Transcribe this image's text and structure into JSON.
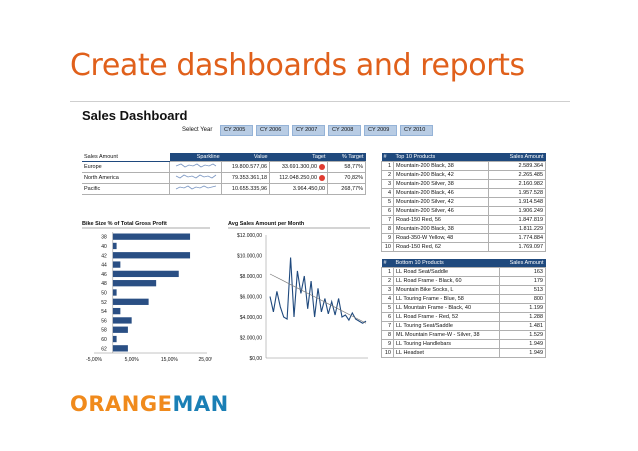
{
  "slide": {
    "title": "Create dashboards and reports"
  },
  "dashboard": {
    "title": "Sales Dashboard",
    "select_year_label": "Select Year",
    "years": [
      "CY 2005",
      "CY 2006",
      "CY 2007",
      "CY 2008",
      "CY 2009",
      "CY 2010"
    ]
  },
  "sales_table": {
    "headers": [
      "Sales Amount",
      "Sparkline",
      "Value",
      "Taget",
      "% Target"
    ],
    "rows": [
      {
        "region": "Europe",
        "value": "19.800.577,06",
        "target": "33.691.300,00",
        "status": "red",
        "pct": "58,77%"
      },
      {
        "region": "North America",
        "value": "79.353.361,18",
        "target": "112.048.250,00",
        "status": "red",
        "pct": "70,82%"
      },
      {
        "region": "Pacific",
        "value": "10.655.335,96",
        "target": "3.964.450,00",
        "status": "",
        "pct": "268,77%"
      }
    ]
  },
  "top10": {
    "hash": "#",
    "title": "Top 10 Products",
    "value_header": "Sales Amount",
    "rows": [
      {
        "n": "1",
        "name": "Mountain-200 Black, 38",
        "value": "2.589.364"
      },
      {
        "n": "2",
        "name": "Mountain-200 Black, 42",
        "value": "2.265.485"
      },
      {
        "n": "3",
        "name": "Mountain-200 Silver, 38",
        "value": "2.160.982"
      },
      {
        "n": "4",
        "name": "Mountain-200 Black, 46",
        "value": "1.957.528"
      },
      {
        "n": "5",
        "name": "Mountain-200 Silver, 42",
        "value": "1.914.548"
      },
      {
        "n": "6",
        "name": "Mountain-200 Silver, 46",
        "value": "1.906.249"
      },
      {
        "n": "7",
        "name": "Road-150 Red, 56",
        "value": "1.847.819"
      },
      {
        "n": "8",
        "name": "Mountain-200 Black, 38",
        "value": "1.811.229"
      },
      {
        "n": "9",
        "name": "Road-350-W Yellow, 48",
        "value": "1.774.884"
      },
      {
        "n": "10",
        "name": "Road-150 Red, 62",
        "value": "1.769.097"
      }
    ]
  },
  "bottom10": {
    "hash": "#",
    "title": "Bottom 10 Products",
    "value_header": "Sales Amount",
    "rows": [
      {
        "n": "1",
        "name": "LL Road Seat/Saddle",
        "value": "163"
      },
      {
        "n": "2",
        "name": "LL Road Frame - Black, 60",
        "value": "179"
      },
      {
        "n": "3",
        "name": "Mountain Bike Socks, L",
        "value": "513"
      },
      {
        "n": "4",
        "name": "LL Touring Frame - Blue, 58",
        "value": "800"
      },
      {
        "n": "5",
        "name": "LL Mountain Frame - Black, 40",
        "value": "1.199"
      },
      {
        "n": "6",
        "name": "LL Road Frame - Red, 52",
        "value": "1.288"
      },
      {
        "n": "7",
        "name": "LL Touring Seat/Saddle",
        "value": "1.481"
      },
      {
        "n": "8",
        "name": "ML Mountain Frame-W - Silver, 38",
        "value": "1.529"
      },
      {
        "n": "9",
        "name": "LL Touring Handlebars",
        "value": "1.949"
      },
      {
        "n": "10",
        "name": "LL Headset",
        "value": "1.949"
      }
    ]
  },
  "chart_data": [
    {
      "type": "bar",
      "title": "Bike Size   % of Total Gross Profit",
      "orientation": "horizontal",
      "categories": [
        "38",
        "40",
        "42",
        "44",
        "46",
        "48",
        "50",
        "52",
        "54",
        "56",
        "58",
        "60",
        "62"
      ],
      "values": [
        20.5,
        1.0,
        20.5,
        2.0,
        17.5,
        11.5,
        1.0,
        9.5,
        2.0,
        5.0,
        4.0,
        1.0,
        4.0
      ],
      "xlim": [
        -5,
        25
      ],
      "xticks": [
        "-5,00%",
        "5,00%",
        "15,00%",
        "25,00%"
      ],
      "bar_color": "#2a4f84"
    },
    {
      "type": "line",
      "title": "Avg Sales Amount per Month",
      "ylim": [
        0,
        12000
      ],
      "yticks": [
        "$12.000,00",
        "$10.000,00",
        "$8.000,00",
        "$6.000,00",
        "$4.000,00",
        "$2.000,00",
        "$0,00"
      ],
      "series": [
        {
          "values": [
            6000,
            4500,
            6500,
            5000,
            4000,
            3800,
            9800,
            4000,
            8500,
            6300,
            8000,
            4800,
            7500,
            4000,
            6800,
            4500,
            5800,
            4300,
            5500,
            4200,
            5800,
            4000,
            4200,
            3700,
            4400,
            3800,
            3600,
            3400,
            3600
          ],
          "color": "#1f497d"
        },
        {
          "values": [
            8200,
            7600,
            7000,
            6400,
            5800,
            5200,
            4600,
            4000,
            3400
          ],
          "color": "#7a7a7a",
          "kind": "trend"
        }
      ],
      "line_color": "#1f497d"
    }
  ],
  "logo": {
    "part1": "ORANGE",
    "part2": "MAN"
  },
  "colors": {
    "title": "#e0601b",
    "header": "#1f497d",
    "tab": "#b8cce4",
    "alert": "#e03c31",
    "logo_orange": "#f08a1c",
    "logo_blue": "#1a7fb5"
  }
}
